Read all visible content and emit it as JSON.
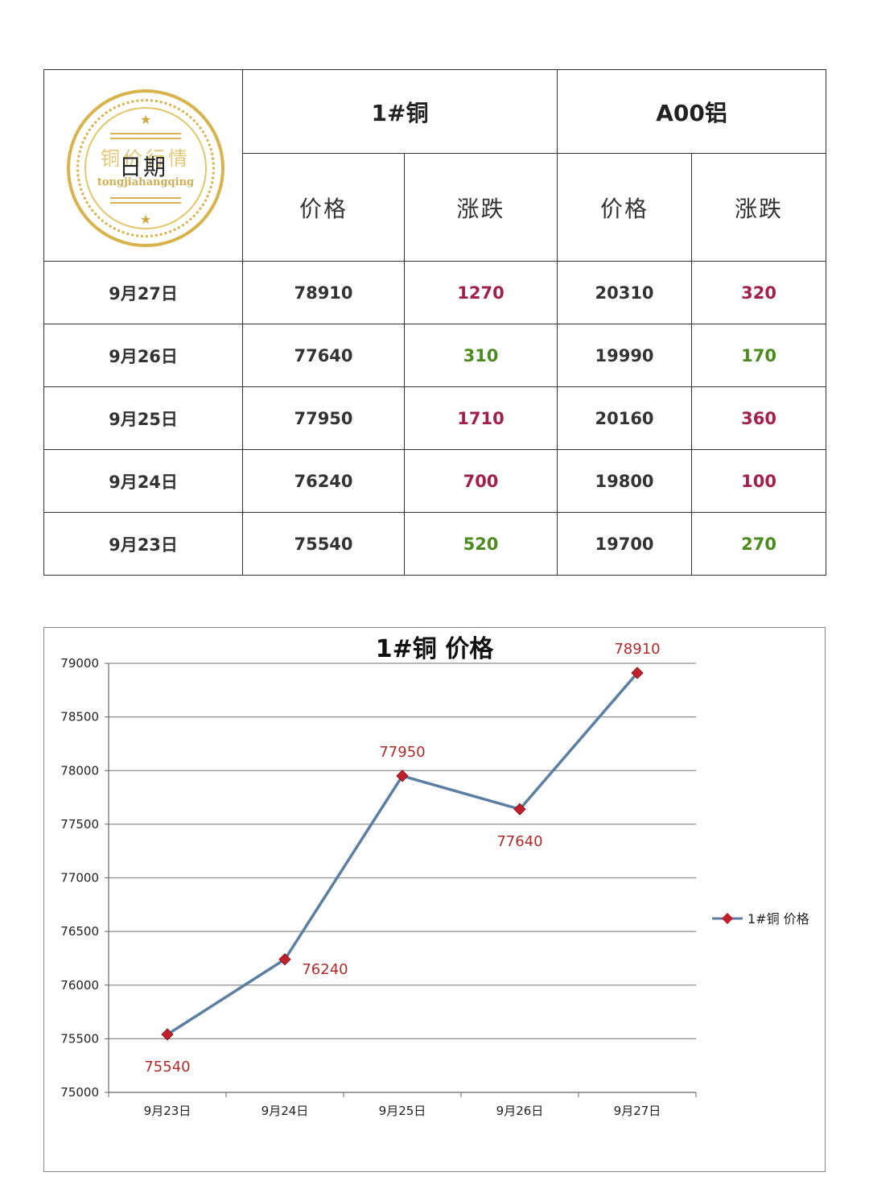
{
  "table": {
    "date_header": "日期",
    "seal": {
      "title": "铜价行情",
      "subtitle": "tongjiahangqing"
    },
    "groups": [
      {
        "name": "1#铜",
        "price_label": "价格",
        "change_label": "涨跌"
      },
      {
        "name": "A00铝",
        "price_label": "价格",
        "change_label": "涨跌"
      }
    ],
    "rows": [
      {
        "date": "9月27日",
        "copper_price": "78910",
        "copper_change": "1270",
        "copper_dir": "up",
        "al_price": "20310",
        "al_change": "320",
        "al_dir": "up"
      },
      {
        "date": "9月26日",
        "copper_price": "77640",
        "copper_change": "310",
        "copper_dir": "down",
        "al_price": "19990",
        "al_change": "170",
        "al_dir": "down"
      },
      {
        "date": "9月25日",
        "copper_price": "77950",
        "copper_change": "1710",
        "copper_dir": "up",
        "al_price": "20160",
        "al_change": "360",
        "al_dir": "up"
      },
      {
        "date": "9月24日",
        "copper_price": "76240",
        "copper_change": "700",
        "copper_dir": "up",
        "al_price": "19800",
        "al_change": "100",
        "al_dir": "up"
      },
      {
        "date": "9月23日",
        "copper_price": "75540",
        "copper_change": "520",
        "copper_dir": "down",
        "al_price": "19700",
        "al_change": "270",
        "al_dir": "down"
      }
    ],
    "colors": {
      "up": "#a0204a",
      "down": "#4a8a1e"
    }
  },
  "chart_data": {
    "type": "line",
    "title": "1#铜 价格",
    "categories": [
      "9月23日",
      "9月24日",
      "9月25日",
      "9月26日",
      "9月27日"
    ],
    "series": [
      {
        "name": "1#铜 价格",
        "values": [
          75540,
          76240,
          77950,
          77640,
          78910
        ],
        "color": "#5a7fa3",
        "marker_color": "#c0202a"
      }
    ],
    "yticks": [
      75000,
      75500,
      76000,
      76500,
      77000,
      77500,
      78000,
      78500,
      79000
    ],
    "ylim": [
      75000,
      79000
    ],
    "grid": true,
    "legend": "right",
    "xlabel": "",
    "ylabel": ""
  }
}
